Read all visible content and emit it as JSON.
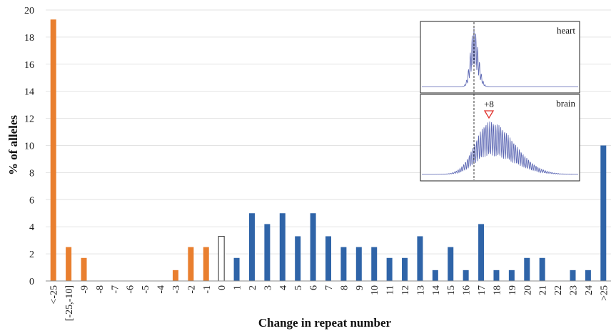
{
  "chart_data": {
    "type": "bar",
    "title": "",
    "xlabel": "Change in repeat number",
    "ylabel": "% of alleles",
    "ylim": [
      0,
      20
    ],
    "yticks": [
      0,
      2,
      4,
      6,
      8,
      10,
      12,
      14,
      16,
      18,
      20
    ],
    "grid": "horizontal",
    "categories": [
      "<-25",
      "[-25,-10]",
      "-9",
      "-8",
      "-7",
      "-6",
      "-5",
      "-4",
      "-3",
      "-2",
      "-1",
      "0",
      "1",
      "2",
      "3",
      "4",
      "5",
      "6",
      "7",
      "8",
      "9",
      "10",
      "11",
      "12",
      "13",
      "14",
      "15",
      "16",
      "17",
      "18",
      "19",
      "20",
      "21",
      "22",
      "23",
      "24",
      ">25"
    ],
    "values": [
      19.3,
      2.5,
      1.7,
      0,
      0,
      0,
      0,
      0,
      0.8,
      2.5,
      2.5,
      3.3,
      1.7,
      5.0,
      4.2,
      5.0,
      3.3,
      5.0,
      3.3,
      2.5,
      2.5,
      2.5,
      1.7,
      1.7,
      3.3,
      0.8,
      2.5,
      0.8,
      4.2,
      0.8,
      0.8,
      1.7,
      1.7,
      0,
      0.8,
      0.8,
      10.0
    ],
    "colors": {
      "contraction": "#e97f2f",
      "no_change": "#ffffff",
      "expansion": "#2f64a8",
      "trace": "#5b66b3",
      "marker": "#e0312b"
    },
    "insets": [
      {
        "label": "heart"
      },
      {
        "label": "brain",
        "annotation": "+8"
      }
    ]
  }
}
